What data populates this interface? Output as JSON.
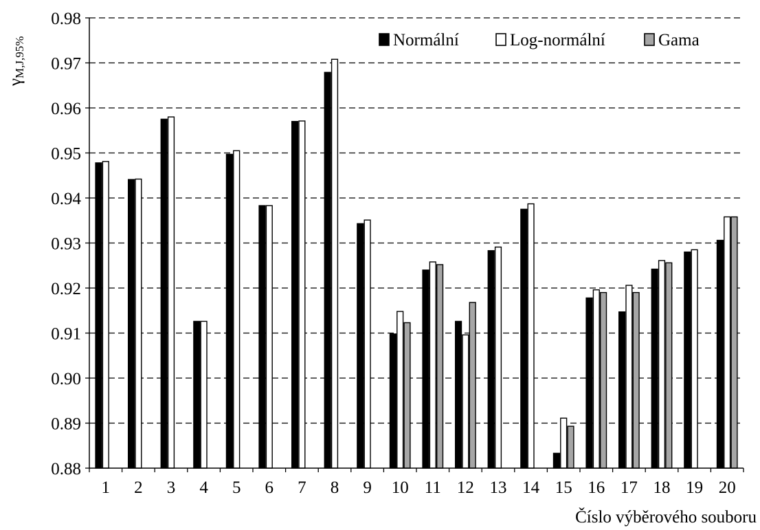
{
  "chart_data": {
    "type": "bar",
    "categories": [
      "1",
      "2",
      "3",
      "4",
      "5",
      "6",
      "7",
      "8",
      "9",
      "10",
      "11",
      "12",
      "13",
      "14",
      "15",
      "16",
      "17",
      "18",
      "19",
      "20"
    ],
    "series": [
      {
        "name": "Normální",
        "color": "#000000",
        "values": [
          0.9478,
          0.9441,
          0.9575,
          0.9126,
          0.9497,
          0.9383,
          0.957,
          0.9679,
          0.9343,
          0.9098,
          0.924,
          0.9126,
          0.9283,
          0.9375,
          0.8833,
          0.9178,
          0.9147,
          0.9242,
          0.928,
          0.9306
        ]
      },
      {
        "name": "Log-normální",
        "color": "#ffffff",
        "values": [
          0.9481,
          0.9442,
          0.958,
          0.9126,
          0.9505,
          0.9383,
          0.9571,
          0.9708,
          0.9351,
          0.9148,
          0.9258,
          0.9096,
          0.9291,
          0.9387,
          0.8911,
          0.9196,
          0.9206,
          0.9261,
          0.9285,
          0.9358
        ]
      },
      {
        "name": "Gama",
        "color": "#a6a6a6",
        "values": [
          null,
          null,
          null,
          null,
          null,
          null,
          null,
          null,
          null,
          0.9123,
          0.9252,
          0.9168,
          null,
          null,
          0.8893,
          0.919,
          0.919,
          0.9256,
          null,
          0.9358
        ]
      }
    ],
    "ylabel_main": "γ",
    "ylabel_sub": "M,J,95%",
    "xlabel": "Číslo výběrového souboru",
    "ylim": [
      0.88,
      0.98
    ],
    "yticks": [
      "0.88",
      "0.89",
      "0.90",
      "0.91",
      "0.92",
      "0.93",
      "0.94",
      "0.95",
      "0.96",
      "0.97",
      "0.98"
    ],
    "grid": "horizontal dashed",
    "legend_position": "top-right"
  }
}
